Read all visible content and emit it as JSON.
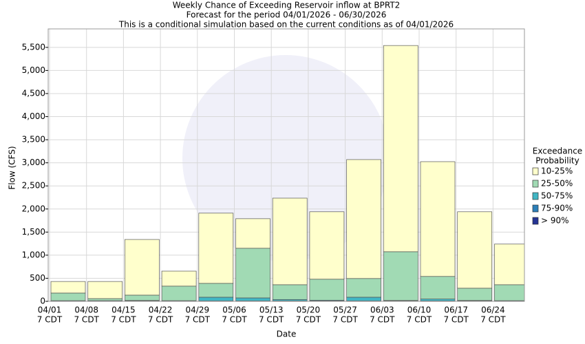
{
  "chart_data": {
    "type": "stacked_bar",
    "title": [
      "Weekly Chance of Exceeding Reservoir inflow at BPRT2",
      "Forecast for the period 04/01/2026 - 06/30/2026",
      "This is a conditional simulation based on the current conditions as of 04/01/2026"
    ],
    "x_label": "Date",
    "y_label": "Flow (CFS)",
    "categories": [
      "04/01",
      "04/08",
      "04/15",
      "04/22",
      "04/29",
      "05/06",
      "05/13",
      "05/20",
      "05/27",
      "06/03",
      "06/10",
      "06/17",
      "06/24"
    ],
    "category_suffix": "7 CDT",
    "legend_title": [
      "Exceedance",
      "Probability"
    ],
    "legend_position": "right",
    "grid": true,
    "ylim": [
      0,
      5900
    ],
    "yticks": [
      0,
      500,
      {
        "value": 1000,
        "label": "1,000"
      },
      {
        "value": 1500,
        "label": "1,500"
      },
      {
        "value": 2000,
        "label": "2,000"
      },
      {
        "value": 2500,
        "label": "2,500"
      },
      {
        "value": 3000,
        "label": "3,000"
      },
      {
        "value": 3500,
        "label": "3,500"
      },
      {
        "value": 4000,
        "label": "4,000"
      },
      {
        "value": 4500,
        "label": "4,500"
      },
      {
        "value": 5000,
        "label": "5,000"
      },
      {
        "value": 5500,
        "label": "5,500"
      }
    ],
    "series": [
      {
        "name": "> 90%",
        "color": "#253494",
        "values": [
          5,
          5,
          5,
          5,
          5,
          5,
          5,
          5,
          5,
          5,
          5,
          5,
          5
        ]
      },
      {
        "name": "75-90%",
        "color": "#2c7fb8",
        "values": [
          5,
          5,
          5,
          5,
          5,
          5,
          5,
          5,
          5,
          5,
          5,
          5,
          5
        ]
      },
      {
        "name": "50-75%",
        "color": "#41b6c4",
        "values": [
          5,
          5,
          10,
          5,
          80,
          65,
          30,
          15,
          80,
          10,
          40,
          10,
          5
        ]
      },
      {
        "name": "25-50%",
        "color": "#a1dab4",
        "values": [
          165,
          45,
          115,
          315,
          300,
          1075,
          320,
          455,
          405,
          1055,
          490,
          265,
          345
        ]
      },
      {
        "name": "10-25%",
        "color": "#ffffcc",
        "values": [
          250,
          370,
          1205,
          325,
          1520,
          640,
          1875,
          1460,
          2575,
          4465,
          2485,
          1655,
          880
        ]
      }
    ]
  }
}
